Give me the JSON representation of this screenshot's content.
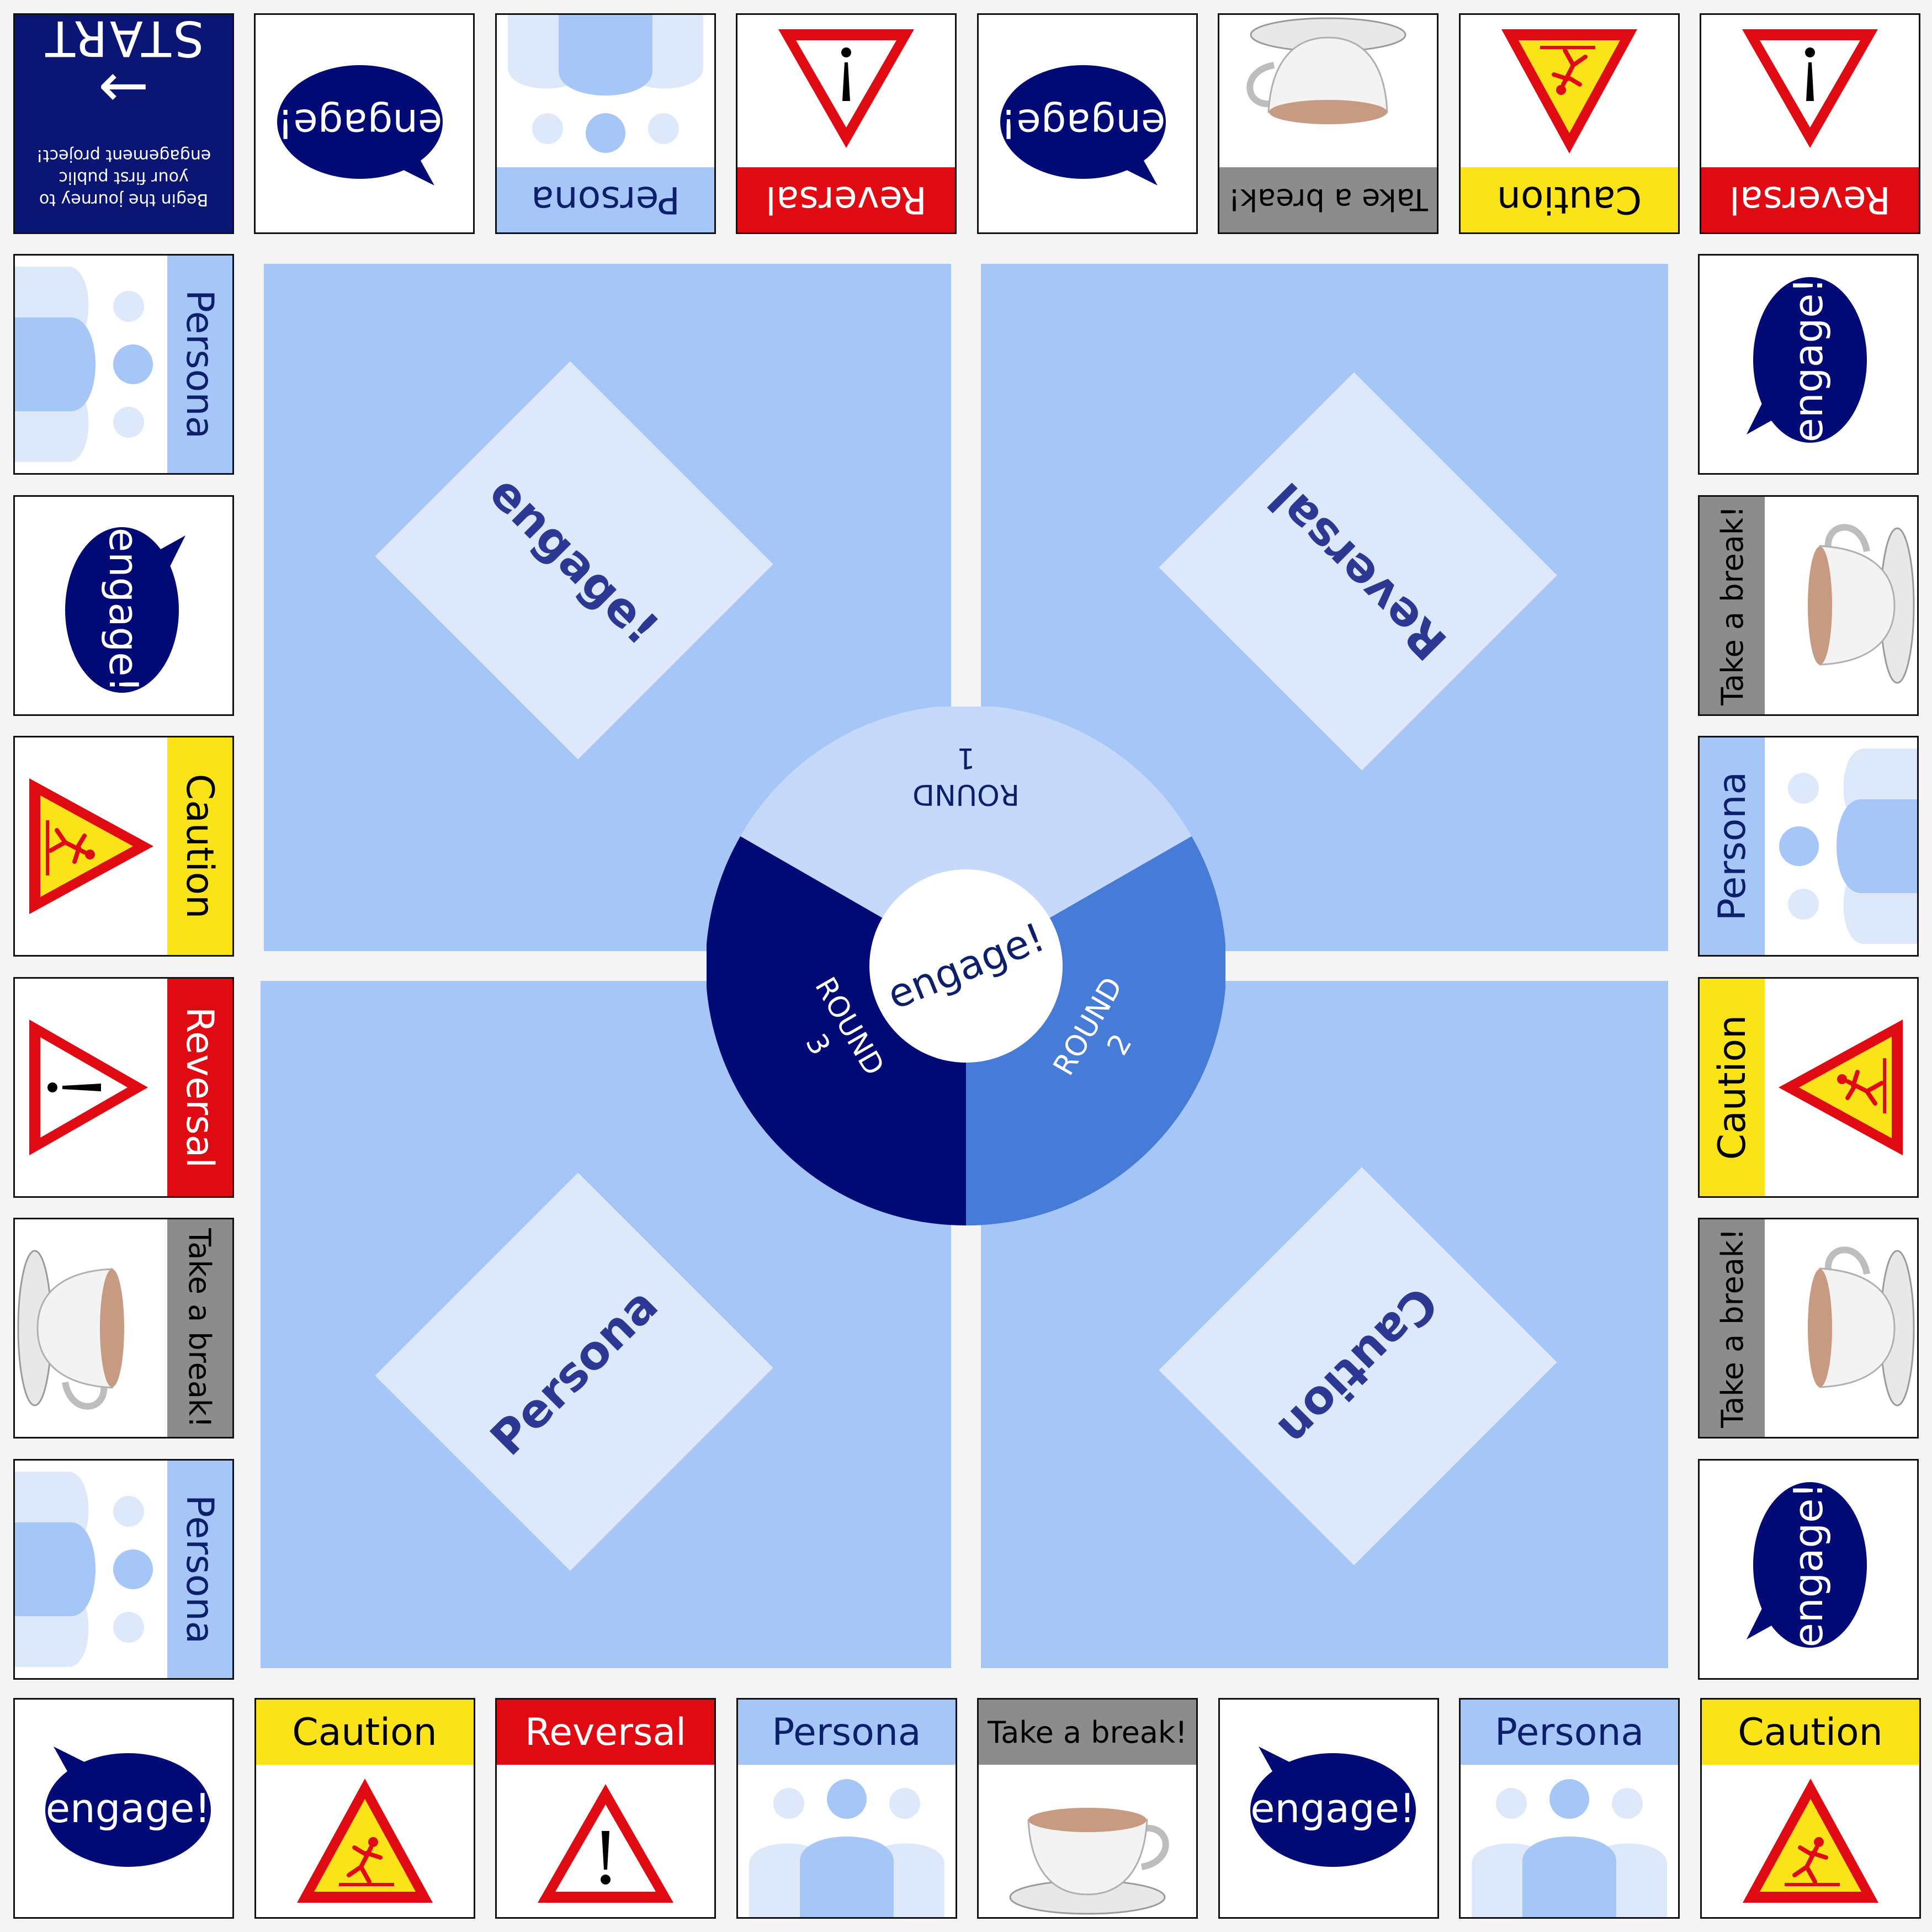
{
  "board": {
    "start": {
      "title": "START",
      "arrow": "→",
      "text_line1": "Begin the journey to",
      "text_line2": "your first public",
      "text_line3": "engagement project!"
    },
    "spaces": {
      "top": [
        {
          "type": "engage",
          "label": "engage!"
        },
        {
          "type": "persona",
          "label": "Persona"
        },
        {
          "type": "reversal",
          "label": "Reversal"
        },
        {
          "type": "engage",
          "label": "engage!"
        },
        {
          "type": "break",
          "label": "Take a break!"
        },
        {
          "type": "caution",
          "label": "Caution"
        },
        {
          "type": "reversal",
          "label": "Reversal"
        }
      ],
      "right": [
        {
          "type": "engage",
          "label": "engage!"
        },
        {
          "type": "break",
          "label": "Take a break!"
        },
        {
          "type": "persona",
          "label": "Persona"
        },
        {
          "type": "caution",
          "label": "Caution"
        },
        {
          "type": "break",
          "label": "Take a break!"
        },
        {
          "type": "engage",
          "label": "engage!"
        }
      ],
      "bottom": [
        {
          "type": "engage",
          "label": "engage!"
        },
        {
          "type": "caution",
          "label": "Caution"
        },
        {
          "type": "reversal",
          "label": "Reversal"
        },
        {
          "type": "persona",
          "label": "Persona"
        },
        {
          "type": "break",
          "label": "Take a break!"
        },
        {
          "type": "engage",
          "label": "engage!"
        },
        {
          "type": "persona",
          "label": "Persona"
        },
        {
          "type": "caution",
          "label": "Caution"
        }
      ],
      "left": [
        {
          "type": "persona",
          "label": "Persona"
        },
        {
          "type": "engage",
          "label": "engage!"
        },
        {
          "type": "caution",
          "label": "Caution"
        },
        {
          "type": "reversal",
          "label": "Reversal"
        },
        {
          "type": "break",
          "label": "Take a break!"
        },
        {
          "type": "persona",
          "label": "Persona"
        }
      ]
    },
    "card_decks": {
      "top_left": "engage!",
      "top_right": "Reversal",
      "bottom_left": "Persona",
      "bottom_right": "Caution"
    },
    "wheel": {
      "hub": "engage!",
      "round1_word": "ROUND",
      "round1_num": "1",
      "round2_word": "ROUND",
      "round2_num": "2",
      "round3_word": "ROUND",
      "round3_num": "3"
    },
    "colors": {
      "navy": "#020a75",
      "board_blue": "#a5c6f7",
      "card_blue": "#dde9fb",
      "round1": "#c6d9fa",
      "round2": "#467bd8",
      "round3": "#020a75",
      "caution_yellow": "#fbe31a",
      "reversal_red": "#e00b12",
      "break_grey": "#8c8c8c"
    }
  }
}
